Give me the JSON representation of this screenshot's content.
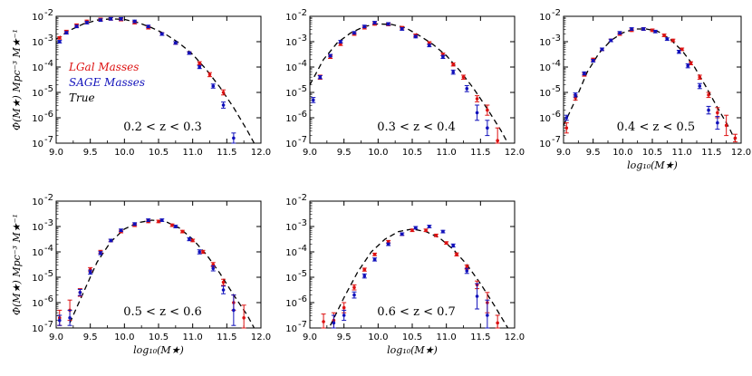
{
  "colors": {
    "lgal": "#dd1111",
    "sage": "#1111bb",
    "truth": "#000000"
  },
  "shared": {
    "x_ticks": [
      9.0,
      9.5,
      10.0,
      10.5,
      11.0,
      11.5,
      12.0
    ],
    "x_tick_labels": [
      "9.0",
      "9.5",
      "10.0",
      "10.5",
      "11.0",
      "11.5",
      "12.0"
    ],
    "y_tick_exponents": [
      -2,
      -3,
      -4,
      -5,
      -6,
      -7
    ],
    "y_tick_base": "10",
    "xlim": [
      9.0,
      12.0
    ],
    "ylim_log10": [
      -7,
      -2
    ],
    "ylabel": "Φ(M★) Mpc⁻³ M★⁻¹",
    "xlabel": "log₁₀(M★)",
    "legend": [
      "LGal Masses",
      "SAGE Masses",
      "True"
    ]
  },
  "chart_data": [
    {
      "type": "line",
      "title": "0.2 < z < 0.3",
      "ylabel": "Φ(M★) Mpc⁻³ M★⁻¹",
      "xlabel": "",
      "legend": [
        "LGal Masses",
        "SAGE Masses",
        "True"
      ],
      "truth": {
        "x": [
          9.0,
          9.2,
          9.4,
          9.6,
          9.8,
          10.0,
          10.2,
          10.4,
          10.6,
          10.8,
          11.0,
          11.2,
          11.4,
          11.6,
          11.8,
          11.9
        ],
        "logy": [
          -2.9,
          -2.55,
          -2.3,
          -2.15,
          -2.1,
          -2.12,
          -2.25,
          -2.45,
          -2.7,
          -3.05,
          -3.5,
          -4.1,
          -4.8,
          -5.6,
          -6.5,
          -7.0
        ]
      },
      "series": [
        {
          "name": "LGal Masses",
          "x": [
            9.05,
            9.15,
            9.3,
            9.45,
            9.65,
            9.8,
            9.95,
            10.15,
            10.35,
            10.55,
            10.75,
            10.95,
            11.1,
            11.25,
            11.45
          ],
          "logy": [
            -2.85,
            -2.6,
            -2.35,
            -2.2,
            -2.12,
            -2.1,
            -2.13,
            -2.25,
            -2.45,
            -2.7,
            -3.05,
            -3.45,
            -3.85,
            -4.3,
            -5.0
          ],
          "err": [
            0.05,
            0.05,
            0.05,
            0.05,
            0.05,
            0.05,
            0.05,
            0.05,
            0.05,
            0.05,
            0.05,
            0.05,
            0.06,
            0.08,
            0.1
          ]
        },
        {
          "name": "SAGE Masses",
          "x": [
            9.05,
            9.15,
            9.3,
            9.45,
            9.65,
            9.8,
            9.95,
            10.15,
            10.35,
            10.55,
            10.75,
            10.95,
            11.1,
            11.3,
            11.45,
            11.6
          ],
          "logy": [
            -3.0,
            -2.65,
            -2.4,
            -2.25,
            -2.15,
            -2.1,
            -2.1,
            -2.2,
            -2.4,
            -2.7,
            -3.05,
            -3.45,
            -4.0,
            -4.75,
            -5.5,
            -6.8
          ],
          "err": [
            0.05,
            0.05,
            0.05,
            0.05,
            0.05,
            0.05,
            0.05,
            0.05,
            0.05,
            0.05,
            0.05,
            0.05,
            0.06,
            0.08,
            0.12,
            0.2
          ]
        }
      ]
    },
    {
      "type": "line",
      "title": "0.3 < z < 0.4",
      "xlabel": "",
      "truth": {
        "x": [
          9.0,
          9.2,
          9.4,
          9.6,
          9.8,
          10.0,
          10.2,
          10.4,
          10.6,
          10.8,
          11.0,
          11.2,
          11.4,
          11.6,
          11.8,
          11.9
        ],
        "logy": [
          -4.7,
          -3.7,
          -3.05,
          -2.65,
          -2.4,
          -2.3,
          -2.32,
          -2.45,
          -2.75,
          -3.1,
          -3.55,
          -4.15,
          -4.85,
          -5.65,
          -6.5,
          -7.0
        ]
      },
      "series": [
        {
          "name": "LGal Masses",
          "x": [
            9.15,
            9.3,
            9.45,
            9.65,
            9.8,
            9.95,
            10.15,
            10.35,
            10.55,
            10.75,
            10.95,
            11.1,
            11.25,
            11.45,
            11.6,
            11.75
          ],
          "logy": [
            -4.4,
            -3.6,
            -3.1,
            -2.7,
            -2.45,
            -2.3,
            -2.32,
            -2.45,
            -2.75,
            -3.05,
            -3.5,
            -3.9,
            -4.4,
            -5.25,
            -5.7,
            -6.9
          ],
          "err": [
            0.08,
            0.06,
            0.05,
            0.05,
            0.05,
            0.05,
            0.05,
            0.05,
            0.05,
            0.05,
            0.05,
            0.06,
            0.08,
            0.12,
            0.2,
            0.5
          ]
        },
        {
          "name": "SAGE Masses",
          "x": [
            9.05,
            9.15,
            9.3,
            9.45,
            9.65,
            9.8,
            9.95,
            10.15,
            10.35,
            10.55,
            10.75,
            10.95,
            11.1,
            11.3,
            11.45,
            11.6
          ],
          "logy": [
            -5.3,
            -4.4,
            -3.55,
            -3.0,
            -2.65,
            -2.4,
            -2.25,
            -2.3,
            -2.5,
            -2.8,
            -3.15,
            -3.6,
            -4.2,
            -4.85,
            -5.8,
            -6.4
          ],
          "err": [
            0.1,
            0.06,
            0.05,
            0.05,
            0.05,
            0.05,
            0.05,
            0.05,
            0.05,
            0.05,
            0.05,
            0.06,
            0.08,
            0.12,
            0.3,
            0.3
          ]
        }
      ]
    },
    {
      "type": "line",
      "title": "0.4 < z < 0.5",
      "xlabel": "log₁₀(M★)",
      "truth": {
        "x": [
          9.0,
          9.2,
          9.4,
          9.6,
          9.8,
          10.0,
          10.2,
          10.4,
          10.6,
          10.8,
          11.0,
          11.2,
          11.4,
          11.6,
          11.8,
          11.9
        ],
        "logy": [
          -6.3,
          -5.3,
          -4.2,
          -3.45,
          -2.95,
          -2.65,
          -2.5,
          -2.5,
          -2.6,
          -2.9,
          -3.35,
          -3.95,
          -4.75,
          -5.6,
          -6.4,
          -6.9
        ]
      },
      "series": [
        {
          "name": "LGal Masses",
          "x": [
            9.05,
            9.2,
            9.35,
            9.5,
            9.65,
            9.8,
            9.95,
            10.15,
            10.35,
            10.5,
            10.7,
            10.85,
            11.0,
            11.15,
            11.3,
            11.45,
            11.6,
            11.75,
            11.9
          ],
          "logy": [
            -6.4,
            -5.2,
            -4.3,
            -3.7,
            -3.3,
            -2.95,
            -2.7,
            -2.55,
            -2.5,
            -2.55,
            -2.75,
            -2.95,
            -3.3,
            -3.85,
            -4.4,
            -5.1,
            -5.8,
            -6.3,
            -6.8
          ],
          "err": [
            0.2,
            0.1,
            0.06,
            0.05,
            0.05,
            0.05,
            0.05,
            0.05,
            0.05,
            0.05,
            0.05,
            0.05,
            0.05,
            0.06,
            0.08,
            0.1,
            0.2,
            0.4,
            0.15
          ]
        },
        {
          "name": "SAGE Masses",
          "x": [
            9.05,
            9.2,
            9.35,
            9.5,
            9.65,
            9.8,
            9.95,
            10.15,
            10.35,
            10.55,
            10.75,
            10.95,
            11.1,
            11.3,
            11.45,
            11.6
          ],
          "logy": [
            -6.0,
            -5.1,
            -4.25,
            -3.75,
            -3.3,
            -2.95,
            -2.65,
            -2.5,
            -2.5,
            -2.6,
            -2.9,
            -3.4,
            -3.95,
            -4.75,
            -5.7,
            -6.2
          ],
          "err": [
            0.1,
            0.08,
            0.06,
            0.05,
            0.05,
            0.05,
            0.05,
            0.05,
            0.05,
            0.05,
            0.05,
            0.06,
            0.08,
            0.1,
            0.15,
            0.25
          ]
        }
      ]
    },
    {
      "type": "line",
      "title": "0.5 < z < 0.6",
      "xlabel": "log₁₀(M★)",
      "truth": {
        "x": [
          9.2,
          9.4,
          9.6,
          9.8,
          10.0,
          10.2,
          10.4,
          10.6,
          10.8,
          11.0,
          11.2,
          11.4,
          11.6,
          11.8,
          11.9
        ],
        "logy": [
          -6.8,
          -5.6,
          -4.4,
          -3.6,
          -3.1,
          -2.85,
          -2.75,
          -2.8,
          -3.05,
          -3.5,
          -4.1,
          -4.85,
          -5.7,
          -6.5,
          -7.0
        ]
      },
      "series": [
        {
          "name": "LGal Masses",
          "x": [
            9.05,
            9.2,
            9.35,
            9.5,
            9.65,
            9.8,
            9.95,
            10.15,
            10.35,
            10.5,
            10.7,
            10.85,
            11.0,
            11.15,
            11.3,
            11.45,
            11.6,
            11.75
          ],
          "logy": [
            -6.6,
            -6.3,
            -5.6,
            -4.7,
            -4.0,
            -3.55,
            -3.2,
            -2.95,
            -2.8,
            -2.8,
            -2.95,
            -3.2,
            -3.55,
            -4.0,
            -4.5,
            -5.2,
            -6.0,
            -6.6
          ],
          "err": [
            0.3,
            0.4,
            0.15,
            0.08,
            0.06,
            0.05,
            0.05,
            0.05,
            0.05,
            0.05,
            0.05,
            0.05,
            0.05,
            0.06,
            0.08,
            0.12,
            0.3,
            0.5
          ]
        },
        {
          "name": "SAGE Masses",
          "x": [
            9.05,
            9.2,
            9.35,
            9.5,
            9.65,
            9.8,
            9.95,
            10.15,
            10.35,
            10.55,
            10.75,
            10.95,
            11.1,
            11.3,
            11.45,
            11.6
          ],
          "logy": [
            -6.7,
            -6.6,
            -5.6,
            -4.8,
            -4.05,
            -3.55,
            -3.15,
            -2.9,
            -2.75,
            -2.75,
            -3.0,
            -3.5,
            -4.0,
            -4.65,
            -5.5,
            -6.3
          ],
          "err": [
            0.2,
            0.3,
            0.12,
            0.08,
            0.06,
            0.05,
            0.05,
            0.05,
            0.05,
            0.05,
            0.05,
            0.06,
            0.08,
            0.1,
            0.15,
            0.6
          ]
        }
      ]
    },
    {
      "type": "line",
      "title": "0.6 < z < 0.7",
      "xlabel": "log₁₀(M★)",
      "truth": {
        "x": [
          9.3,
          9.5,
          9.7,
          9.9,
          10.1,
          10.3,
          10.5,
          10.7,
          10.9,
          11.1,
          11.3,
          11.5,
          11.7,
          11.9
        ],
        "logy": [
          -6.9,
          -5.8,
          -4.8,
          -4.0,
          -3.5,
          -3.2,
          -3.1,
          -3.2,
          -3.45,
          -3.9,
          -4.5,
          -5.25,
          -6.1,
          -7.0
        ]
      },
      "series": [
        {
          "name": "LGal Masses",
          "x": [
            9.2,
            9.35,
            9.5,
            9.65,
            9.8,
            9.95,
            10.15,
            10.35,
            10.5,
            10.7,
            10.85,
            11.0,
            11.15,
            11.3,
            11.45,
            11.6,
            11.75
          ],
          "logy": [
            -6.75,
            -6.7,
            -6.2,
            -5.4,
            -4.7,
            -4.1,
            -3.6,
            -3.3,
            -3.15,
            -3.15,
            -3.35,
            -3.65,
            -4.1,
            -4.6,
            -5.3,
            -6.0,
            -6.8
          ],
          "err": [
            0.3,
            0.3,
            0.2,
            0.1,
            0.06,
            0.05,
            0.05,
            0.05,
            0.05,
            0.05,
            0.05,
            0.05,
            0.06,
            0.08,
            0.15,
            0.4,
            0.3
          ]
        },
        {
          "name": "SAGE Masses",
          "x": [
            9.35,
            9.5,
            9.65,
            9.8,
            9.95,
            10.15,
            10.35,
            10.55,
            10.75,
            10.95,
            11.1,
            11.3,
            11.45,
            11.6
          ],
          "logy": [
            -6.8,
            -6.5,
            -5.7,
            -4.95,
            -4.3,
            -3.7,
            -3.3,
            -3.05,
            -3.0,
            -3.2,
            -3.75,
            -4.75,
            -5.75,
            -6.5
          ],
          "err": [
            0.3,
            0.2,
            0.12,
            0.08,
            0.06,
            0.05,
            0.05,
            0.05,
            0.05,
            0.05,
            0.06,
            0.1,
            0.5,
            0.6
          ]
        }
      ]
    }
  ]
}
